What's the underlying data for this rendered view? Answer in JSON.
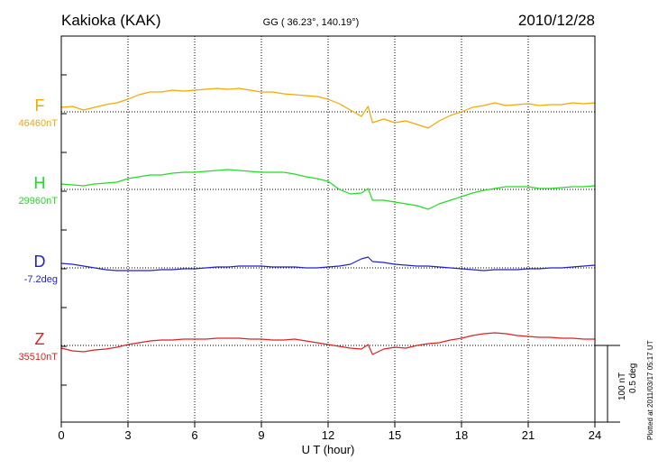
{
  "header": {
    "station": "Kakioka (KAK)",
    "coords": "GG ( 36.23°, 140.19°)",
    "date": "2010/12/28"
  },
  "footer_note": "Plotted at 2011/03/17 05:17 UT",
  "scale_label_1": "100 nT",
  "scale_label_2": "0.5 deg",
  "chart_data": {
    "type": "line",
    "xlabel": "U T (hour)",
    "xlim": [
      0,
      24
    ],
    "xticks": [
      0,
      3,
      6,
      9,
      12,
      15,
      18,
      21,
      24
    ],
    "xtick_labels": [
      "0",
      "3",
      "6",
      "9",
      "12",
      "15",
      "18",
      "21",
      "24"
    ],
    "grid": true,
    "series": [
      {
        "name": "F",
        "baseline_label": "46460nT",
        "color": "#f5a800",
        "x": [
          0,
          0.5,
          1,
          1.5,
          2,
          2.5,
          3,
          3.5,
          4,
          4.5,
          5,
          5.5,
          6,
          6.5,
          7,
          7.5,
          8,
          8.5,
          9,
          9.5,
          10,
          10.5,
          11,
          11.5,
          12,
          12.5,
          13,
          13.5,
          13.8,
          14,
          14.5,
          15,
          15.5,
          16,
          16.5,
          17,
          17.5,
          18,
          18.5,
          19,
          19.5,
          20,
          20.5,
          21,
          21.5,
          22,
          22.5,
          23,
          23.5,
          24
        ],
        "y": [
          5,
          6,
          2,
          5,
          8,
          10,
          14,
          19,
          22,
          22,
          24,
          23,
          24,
          25,
          26,
          25,
          26,
          24,
          22,
          22,
          20,
          19,
          18,
          17,
          14,
          9,
          2,
          -5,
          6,
          -12,
          -8,
          -12,
          -10,
          -14,
          -18,
          -10,
          -4,
          0,
          5,
          7,
          10,
          7,
          8,
          9,
          7,
          8,
          8,
          10,
          9,
          10
        ]
      },
      {
        "name": "H",
        "baseline_label": "29960nT",
        "color": "#22dd22",
        "x": [
          0,
          0.5,
          1,
          1.5,
          2,
          2.5,
          3,
          3.5,
          4,
          4.5,
          5,
          5.5,
          6,
          6.5,
          7,
          7.5,
          8,
          8.5,
          9,
          9.5,
          10,
          10.5,
          11,
          11.5,
          12,
          12.5,
          13,
          13.5,
          13.8,
          14,
          14.5,
          15,
          15.5,
          16,
          16.5,
          17,
          17.5,
          18,
          18.5,
          19,
          19.5,
          20,
          20.5,
          21,
          21.5,
          22,
          22.5,
          23,
          23.5,
          24
        ],
        "y": [
          6,
          5,
          4,
          6,
          7,
          8,
          12,
          14,
          16,
          16,
          18,
          19,
          19,
          20,
          21,
          22,
          21,
          20,
          19,
          19,
          19,
          17,
          14,
          12,
          9,
          0,
          -5,
          -4,
          1,
          -12,
          -12,
          -14,
          -16,
          -18,
          -22,
          -16,
          -12,
          -8,
          -4,
          -1,
          1,
          3,
          3,
          3,
          1,
          1,
          2,
          3,
          3,
          4
        ]
      },
      {
        "name": "D",
        "baseline_label": "-7.2deg",
        "color": "#2222cc",
        "x": [
          0,
          0.5,
          1,
          1.5,
          2,
          2.5,
          3,
          3.5,
          4,
          4.5,
          5,
          5.5,
          6,
          6.5,
          7,
          7.5,
          8,
          8.5,
          9,
          9.5,
          10,
          10.5,
          11,
          11.5,
          12,
          12.5,
          13,
          13.5,
          13.8,
          14,
          14.5,
          15,
          15.5,
          16,
          16.5,
          17,
          17.5,
          18,
          18.5,
          19,
          19.5,
          20,
          20.5,
          21,
          21.5,
          22,
          22.5,
          23,
          23.5,
          24
        ],
        "y": [
          5,
          4,
          2,
          0,
          -2,
          -3,
          -3,
          -3,
          -3,
          -2,
          -2,
          -1,
          -1,
          0,
          1,
          1,
          2,
          2,
          2,
          1,
          1,
          1,
          0,
          0,
          1,
          2,
          4,
          10,
          12,
          7,
          6,
          4,
          3,
          2,
          2,
          1,
          0,
          -1,
          -2,
          -3,
          -2,
          -2,
          -2,
          -1,
          -1,
          0,
          0,
          1,
          2,
          3
        ]
      },
      {
        "name": "Z",
        "baseline_label": "35510nT",
        "color": "#dd2222",
        "x": [
          0,
          0.5,
          1,
          1.5,
          2,
          2.5,
          3,
          3.5,
          4,
          4.5,
          5,
          5.5,
          6,
          6.5,
          7,
          7.5,
          8,
          8.5,
          9,
          9.5,
          10,
          10.5,
          11,
          11.5,
          12,
          12.5,
          13,
          13.5,
          13.8,
          14,
          14.5,
          15,
          15.5,
          16,
          16.5,
          17,
          17.5,
          18,
          18.5,
          19,
          19.5,
          20,
          20.5,
          21,
          21.5,
          22,
          22.5,
          23,
          23.5,
          24
        ],
        "y": [
          -3,
          -6,
          -7,
          -5,
          -4,
          -2,
          1,
          3,
          5,
          6,
          6,
          7,
          7,
          7,
          8,
          8,
          8,
          7,
          7,
          6,
          6,
          7,
          5,
          3,
          1,
          -1,
          -3,
          -4,
          1,
          -10,
          -4,
          -2,
          -3,
          0,
          2,
          3,
          6,
          8,
          11,
          13,
          14,
          13,
          11,
          10,
          9,
          9,
          8,
          8,
          7,
          7
        ]
      }
    ]
  }
}
